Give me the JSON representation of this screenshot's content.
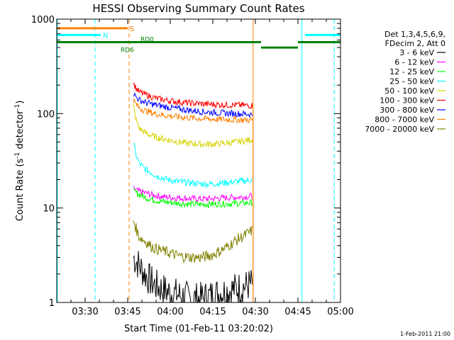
{
  "chart_data": {
    "type": "line",
    "title": "HESSI Observing Summary Count Rates",
    "xlabel": "Start Time (01-Feb-11 03:20:02)",
    "ylabel_main": "Count Rate (s",
    "ylabel_sup1": "-1",
    "ylabel_mid": " detector",
    "ylabel_sup2": "-1",
    "ylabel_end": ")",
    "yscale": "log",
    "ylim": [
      1,
      1000
    ],
    "xlim_minutes": [
      200,
      300
    ],
    "x_ticks": [
      {
        "m": 210,
        "label": "03:30"
      },
      {
        "m": 225,
        "label": "03:45"
      },
      {
        "m": 240,
        "label": "04:00"
      },
      {
        "m": 255,
        "label": "04:15"
      },
      {
        "m": 270,
        "label": "04:30"
      },
      {
        "m": 285,
        "label": "04:45"
      },
      {
        "m": 300,
        "label": "05:00"
      }
    ],
    "y_ticks": [
      {
        "v": 1,
        "label": "1"
      },
      {
        "v": 10,
        "label": "10"
      },
      {
        "v": 100,
        "label": "100"
      },
      {
        "v": 1000,
        "label": "1000"
      }
    ],
    "legend_header": [
      "Det 1,3,4,5,6,9,",
      "FDecim 2, Att 0"
    ],
    "legend_position": "right",
    "series": [
      {
        "name": "3 - 6 keV",
        "color": "#000000",
        "x": [
          227,
          229,
          231,
          233,
          235,
          239,
          243,
          247,
          251,
          255,
          259,
          263,
          267,
          269
        ],
        "y": [
          3,
          2.5,
          2,
          1.7,
          1.5,
          1.3,
          1.2,
          1.1,
          1.1,
          1.2,
          1.3,
          1.4,
          1.5,
          1.6
        ]
      },
      {
        "name": "6 - 12 keV",
        "color": "#ff00ff",
        "x": [
          227,
          229,
          231,
          233,
          235,
          239,
          243,
          247,
          251,
          255,
          259,
          263,
          267,
          269
        ],
        "y": [
          16,
          15,
          14.5,
          14,
          13.5,
          13,
          12.8,
          12.6,
          12.5,
          12.6,
          12.8,
          13,
          13.2,
          13.4
        ]
      },
      {
        "name": "12 - 25 keV",
        "color": "#00ff00",
        "x": [
          227,
          229,
          231,
          233,
          235,
          239,
          243,
          247,
          251,
          255,
          259,
          263,
          267,
          269
        ],
        "y": [
          15,
          14,
          13,
          12.5,
          12,
          11.5,
          11.2,
          11,
          10.9,
          11,
          11.1,
          11.2,
          11.3,
          11.4
        ]
      },
      {
        "name": "25 - 50 keV",
        "color": "#00ffff",
        "x": [
          227,
          228,
          229,
          231,
          233,
          235,
          239,
          243,
          247,
          251,
          255,
          259,
          263,
          267,
          269
        ],
        "y": [
          50,
          36,
          30,
          26,
          24,
          22,
          20,
          19,
          18.5,
          18,
          18,
          18.5,
          19,
          19.5,
          20
        ]
      },
      {
        "name": "50 - 100 keV",
        "color": "#d4d400",
        "x": [
          227,
          228,
          229,
          231,
          233,
          235,
          239,
          243,
          247,
          251,
          255,
          259,
          263,
          267,
          269
        ],
        "y": [
          120,
          85,
          70,
          63,
          59,
          56,
          53,
          50,
          48,
          47.5,
          47.5,
          48.5,
          50,
          52,
          53
        ]
      },
      {
        "name": "100 - 300 keV",
        "color": "#ff0000",
        "x": [
          227,
          228,
          229,
          231,
          233,
          235,
          239,
          243,
          247,
          251,
          255,
          259,
          263,
          267,
          269
        ],
        "y": [
          210,
          185,
          170,
          160,
          152,
          145,
          138,
          133,
          129,
          127,
          125,
          124,
          123,
          122,
          122
        ]
      },
      {
        "name": "300 - 800 keV",
        "color": "#0000ff",
        "x": [
          227,
          228,
          229,
          231,
          233,
          235,
          239,
          243,
          247,
          251,
          255,
          259,
          263,
          267,
          269
        ],
        "y": [
          165,
          150,
          140,
          132,
          127,
          123,
          117,
          112,
          108,
          105,
          103,
          101,
          100,
          99,
          98
        ]
      },
      {
        "name": "800 - 7000 keV",
        "color": "#ff8000",
        "x": [
          227,
          228,
          229,
          231,
          233,
          235,
          239,
          243,
          247,
          251,
          255,
          259,
          263,
          267,
          269
        ],
        "y": [
          140,
          125,
          115,
          108,
          103,
          99,
          95,
          92,
          90,
          88.5,
          87.5,
          86.5,
          86,
          85.5,
          85
        ]
      },
      {
        "name": "7000 - 20000 keV",
        "color": "#808000",
        "x": [
          227,
          228,
          229,
          231,
          233,
          235,
          239,
          243,
          247,
          251,
          255,
          259,
          263,
          267,
          269
        ],
        "y": [
          7.5,
          6,
          5,
          4.5,
          4,
          3.7,
          3.4,
          3.1,
          3,
          3,
          3.2,
          3.7,
          4.5,
          5.3,
          5.8
        ]
      }
    ],
    "status_bars": [
      {
        "label": "S",
        "color": "#ff8000",
        "x0": 200,
        "x1": 225,
        "level": 800
      },
      {
        "label": "N",
        "color": "#00ffff",
        "x0": 200,
        "x1": 215.5,
        "level": 680
      },
      {
        "label": "N",
        "color": "#00ffff",
        "x0": 287.5,
        "x1": 300,
        "level": 680
      },
      {
        "label": "RD6",
        "color": "#008000",
        "x0": 200,
        "x1": 300,
        "level": 570
      },
      {
        "label": "RD0",
        "color": "#008000",
        "x0": 272,
        "x1": 285,
        "level": 500
      }
    ],
    "vertical_markers": [
      {
        "color": "#00ffff",
        "style": "dashed",
        "m": 213.5
      },
      {
        "color": "#ff8000",
        "style": "dashed",
        "m": 225.5
      },
      {
        "color": "#ff8000",
        "style": "solid",
        "m": 269.2
      },
      {
        "color": "#00ffff",
        "style": "solid",
        "m": 286.4
      },
      {
        "color": "#00ffff",
        "style": "dashed",
        "m": 297.8
      },
      {
        "color": "#00ffff",
        "style": "solid",
        "m": 200.2
      }
    ],
    "footer_date": "1-Feb-2011 21:00"
  }
}
